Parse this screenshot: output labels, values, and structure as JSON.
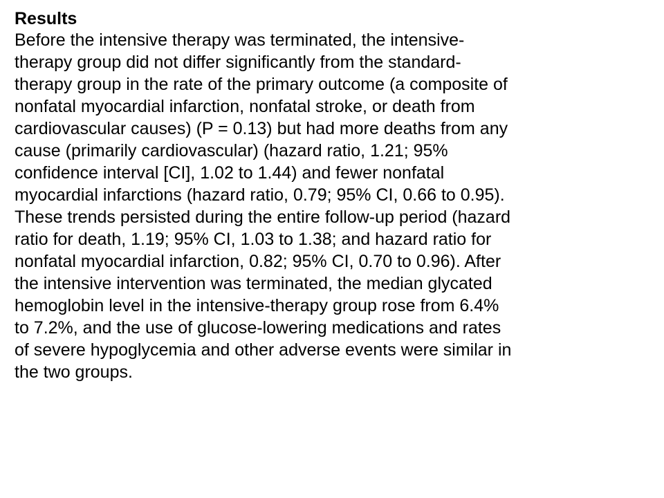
{
  "document": {
    "heading": "Results",
    "lines": [
      "Before the intensive therapy was terminated, the intensive-",
      "therapy group did not differ significantly from the standard-",
      "therapy group in the rate of the primary outcome (a composite of",
      "nonfatal myocardial infarction, nonfatal stroke, or death from",
      "cardiovascular causes) (P = 0.13) but had more deaths from any",
      "cause (primarily cardiovascular) (hazard ratio, 1.21; 95%",
      "confidence interval [CI], 1.02 to 1.44) and fewer nonfatal",
      "myocardial infarctions (hazard ratio, 0.79; 95% CI, 0.66 to 0.95).",
      "These trends persisted during the entire follow-up period (hazard",
      "ratio for death, 1.19; 95% CI, 1.03 to 1.38; and hazard ratio for",
      "nonfatal myocardial infarction, 0.82; 95% CI, 0.70 to 0.96). After",
      "the intensive intervention was terminated, the median glycated",
      "hemoglobin level in the intensive-therapy group rose from 6.4%",
      "to 7.2%, and the use of glucose-lowering medications and rates",
      "of severe hypoglycemia and other adverse events were similar in",
      "the two groups."
    ]
  }
}
